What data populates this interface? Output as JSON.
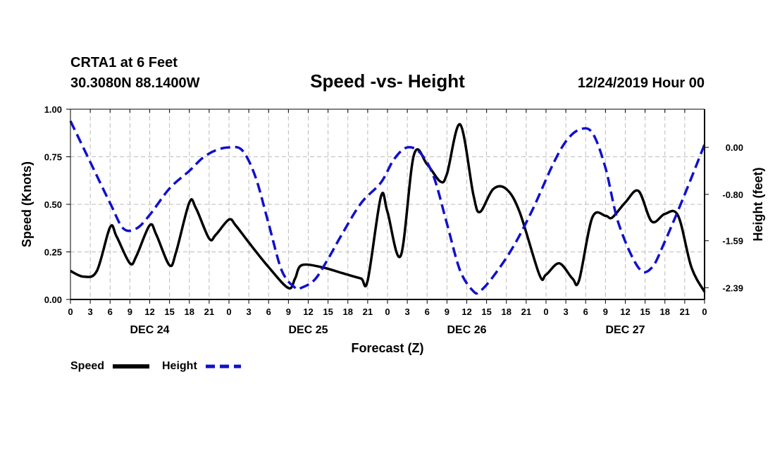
{
  "header": {
    "station": "CRTA1 at 6 Feet",
    "coords": "30.3080N 88.1400W",
    "title": "Speed -vs- Height",
    "date": "12/24/2019 Hour 00"
  },
  "legend": {
    "speed_label": "Speed",
    "height_label": "Height"
  },
  "colors": {
    "speed": "#000000",
    "height": "#1010cc",
    "grid": "#bbbbbb"
  },
  "chart_data": {
    "type": "line",
    "title": "Speed -vs- Height",
    "xlabel": "Forecast (Z)",
    "ylabel_left": "Speed (Knots)",
    "ylabel_right": "Height (feet)",
    "x_range_hours": [
      0,
      96
    ],
    "x_tick_step_hours": 3,
    "x_tick_labels": [
      "0",
      "3",
      "6",
      "9",
      "12",
      "15",
      "18",
      "21",
      "0",
      "3",
      "6",
      "9",
      "12",
      "15",
      "18",
      "21",
      "0",
      "3",
      "6",
      "9",
      "12",
      "15",
      "18",
      "21",
      "0",
      "3",
      "6",
      "9",
      "12",
      "15",
      "18",
      "21",
      "0"
    ],
    "day_labels": [
      {
        "label": "DEC 24",
        "hour": 12
      },
      {
        "label": "DEC 25",
        "hour": 36
      },
      {
        "label": "DEC 26",
        "hour": 60
      },
      {
        "label": "DEC 27",
        "hour": 84
      }
    ],
    "y_left": {
      "range": [
        0,
        1.0
      ],
      "ticks": [
        "0.00",
        "0.25",
        "0.50",
        "0.75",
        "1.00"
      ],
      "tick_values": [
        0,
        0.25,
        0.5,
        0.75,
        1.0
      ]
    },
    "y_right": {
      "range": [
        -2.59,
        0.65
      ],
      "ticks": [
        "0.00",
        "-0.80",
        "-1.59",
        "-2.39"
      ],
      "tick_values": [
        0,
        -0.8,
        -1.59,
        -2.39
      ]
    },
    "grid": true,
    "series": [
      {
        "name": "Speed",
        "axis": "left",
        "style": "solid",
        "x": [
          0,
          2,
          4,
          6,
          7,
          9,
          10,
          12,
          13,
          15,
          16,
          18,
          19,
          21,
          22,
          24,
          25,
          27,
          30,
          33,
          34,
          35,
          38,
          41,
          42,
          44,
          45,
          47,
          48,
          50,
          52,
          54,
          56,
          57,
          59,
          61,
          62,
          64,
          66,
          68,
          71,
          72,
          74,
          76,
          77,
          79,
          81,
          82,
          84,
          86,
          88,
          90,
          92,
          94,
          96
        ],
        "y": [
          0.15,
          0.12,
          0.15,
          0.38,
          0.33,
          0.19,
          0.23,
          0.39,
          0.34,
          0.18,
          0.25,
          0.51,
          0.48,
          0.32,
          0.34,
          0.42,
          0.39,
          0.3,
          0.17,
          0.06,
          0.11,
          0.18,
          0.17,
          0.14,
          0.13,
          0.11,
          0.1,
          0.54,
          0.46,
          0.23,
          0.76,
          0.71,
          0.62,
          0.66,
          0.92,
          0.55,
          0.46,
          0.58,
          0.58,
          0.46,
          0.13,
          0.13,
          0.19,
          0.11,
          0.1,
          0.43,
          0.44,
          0.43,
          0.51,
          0.57,
          0.41,
          0.45,
          0.44,
          0.17,
          0.04
        ]
      },
      {
        "name": "Height",
        "axis": "right",
        "style": "dashed",
        "x": [
          0,
          3,
          6,
          8,
          10,
          12,
          15,
          18,
          20,
          22,
          24,
          26,
          28,
          30,
          32,
          34,
          35,
          37,
          39,
          41,
          44,
          47,
          49,
          51,
          53,
          55,
          57,
          59,
          61,
          62,
          64,
          67,
          70,
          73,
          75,
          77,
          79,
          81,
          83,
          86,
          88,
          90,
          93,
          96
        ],
        "y": [
          0.45,
          -0.25,
          -0.95,
          -1.38,
          -1.38,
          -1.15,
          -0.7,
          -0.4,
          -0.18,
          -0.05,
          0.0,
          -0.05,
          -0.5,
          -1.3,
          -2.1,
          -2.39,
          -2.39,
          -2.25,
          -1.9,
          -1.5,
          -0.95,
          -0.6,
          -0.2,
          0.0,
          -0.1,
          -0.5,
          -1.3,
          -2.1,
          -2.45,
          -2.45,
          -2.2,
          -1.7,
          -1.05,
          -0.3,
          0.1,
          0.3,
          0.25,
          -0.35,
          -1.3,
          -2.05,
          -2.05,
          -1.6,
          -0.8,
          0.05
        ]
      }
    ]
  }
}
